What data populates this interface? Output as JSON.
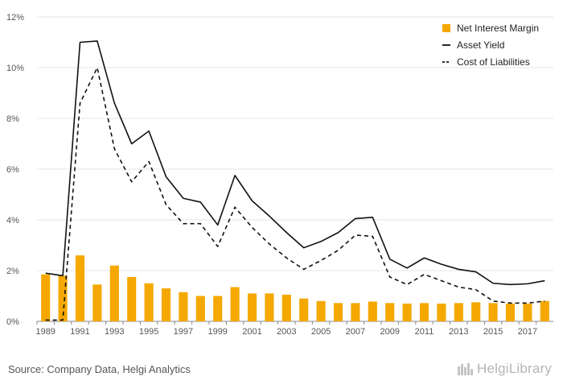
{
  "chart_data": {
    "type": "bar",
    "categories": [
      1989,
      1990,
      1991,
      1992,
      1993,
      1994,
      1995,
      1996,
      1997,
      1998,
      1999,
      2000,
      2001,
      2002,
      2003,
      2004,
      2005,
      2006,
      2007,
      2008,
      2009,
      2010,
      2011,
      2012,
      2013,
      2014,
      2015,
      2016,
      2017,
      2018
    ],
    "x_tick_labels": [
      "1989",
      "1991",
      "1993",
      "1995",
      "1997",
      "1999",
      "2001",
      "2003",
      "2005",
      "2007",
      "2009",
      "2011",
      "2013",
      "2015",
      "2017"
    ],
    "y_tick_labels": [
      "0%",
      "2%",
      "4%",
      "6%",
      "8%",
      "10%",
      "12%"
    ],
    "ylim": [
      0,
      12
    ],
    "y_unit": "%",
    "legend_position": "top-right",
    "grid": true,
    "series": [
      {
        "name": "Net Interest Margin",
        "kind": "bar",
        "color": "#f5a800",
        "values": [
          1.85,
          1.8,
          2.6,
          1.45,
          2.2,
          1.75,
          1.5,
          1.3,
          1.15,
          1.0,
          1.0,
          1.35,
          1.1,
          1.1,
          1.05,
          0.9,
          0.8,
          0.72,
          0.72,
          0.78,
          0.72,
          0.7,
          0.72,
          0.7,
          0.72,
          0.75,
          0.72,
          0.7,
          0.7,
          0.8
        ]
      },
      {
        "name": "Asset Yield",
        "kind": "line",
        "color": "#111111",
        "dash": "solid",
        "values": [
          1.9,
          1.8,
          11.0,
          11.05,
          8.6,
          7.0,
          7.5,
          5.7,
          4.85,
          4.7,
          3.8,
          5.75,
          4.75,
          4.15,
          3.5,
          2.9,
          3.15,
          3.5,
          4.05,
          4.1,
          2.45,
          2.1,
          2.5,
          2.25,
          2.05,
          1.95,
          1.5,
          1.45,
          1.48,
          1.6
        ]
      },
      {
        "name": "Cost of Liabilities",
        "kind": "line",
        "color": "#111111",
        "dash": "dashed",
        "values": [
          0.05,
          0.05,
          8.6,
          10.0,
          6.8,
          5.5,
          6.3,
          4.6,
          3.85,
          3.85,
          2.95,
          4.5,
          3.7,
          3.05,
          2.5,
          2.05,
          2.4,
          2.8,
          3.4,
          3.35,
          1.75,
          1.45,
          1.85,
          1.6,
          1.35,
          1.25,
          0.8,
          0.72,
          0.72,
          0.8
        ]
      }
    ]
  },
  "footer": {
    "source": "Source: Company Data, Helgi Analytics",
    "logo_text": "HelgiLibrary"
  }
}
